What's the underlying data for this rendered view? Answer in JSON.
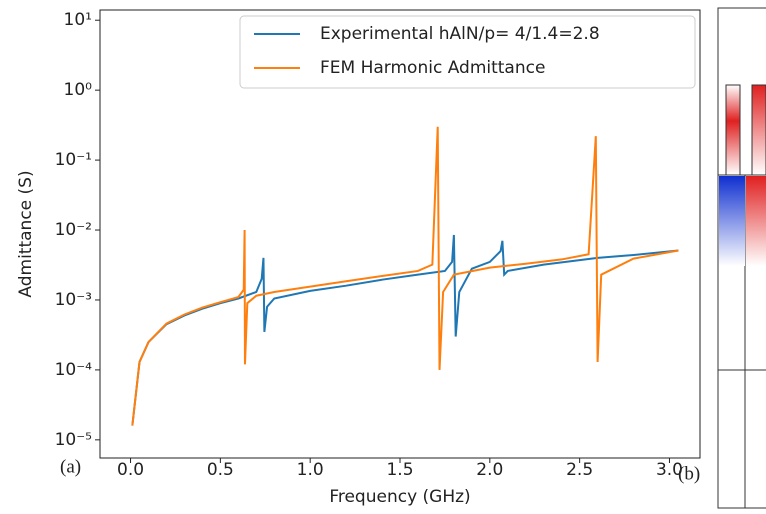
{
  "chart_data": {
    "type": "line",
    "xlabel": "Frequency (GHz)",
    "ylabel": "Admittance (S)",
    "annotations": [
      "(a)",
      "(b)"
    ],
    "yscale": "log",
    "legend": "upper right",
    "xlim": [
      -0.17,
      3.17
    ],
    "ylim": [
      5.5e-06,
      14
    ],
    "xticks": [
      {
        "value": 0,
        "label": "0.0"
      },
      0.5,
      {
        "value": 1,
        "label": "1.0"
      },
      1.5,
      {
        "value": 2,
        "label": "2.0"
      },
      2.5,
      {
        "value": 3,
        "label": "3.0"
      }
    ],
    "yticks": [
      {
        "value": 1e-05,
        "label": "10⁻⁵"
      },
      {
        "value": 0.0001,
        "label": "10⁻⁴"
      },
      {
        "value": 0.001,
        "label": "10⁻³"
      },
      {
        "value": 0.01,
        "label": "10⁻²"
      },
      {
        "value": 0.1,
        "label": "10⁻¹"
      },
      {
        "value": 1,
        "label": "10⁰"
      },
      {
        "value": 10,
        "label": "10¹"
      }
    ],
    "series": [
      {
        "name": "Experimental hAlN/p= 4/1.4=2.8",
        "color": "#1f77b4",
        "x": [
          0.01,
          0.05,
          0.1,
          0.2,
          0.3,
          0.4,
          0.5,
          0.6,
          0.7,
          0.73,
          0.74,
          0.745,
          0.76,
          0.8,
          1.0,
          1.2,
          1.4,
          1.6,
          1.75,
          1.79,
          1.8,
          1.81,
          1.83,
          1.9,
          2.0,
          2.06,
          2.07,
          2.08,
          2.1,
          2.3,
          2.6,
          2.8,
          3.05
        ],
        "values": [
          1.6e-05,
          0.00013,
          0.00025,
          0.00045,
          0.0006,
          0.00075,
          0.0009,
          0.00105,
          0.0013,
          0.002,
          0.004,
          0.00035,
          0.0008,
          0.00105,
          0.00135,
          0.0016,
          0.00195,
          0.0023,
          0.0026,
          0.0035,
          0.0085,
          0.0003,
          0.0013,
          0.0028,
          0.0035,
          0.005,
          0.007,
          0.0023,
          0.0026,
          0.0032,
          0.004,
          0.0044,
          0.0051
        ]
      },
      {
        "name": "FEM Harmonic Admittance",
        "color": "#ff7f0e",
        "x": [
          0.01,
          0.05,
          0.1,
          0.2,
          0.3,
          0.4,
          0.5,
          0.6,
          0.63,
          0.635,
          0.637,
          0.65,
          0.7,
          0.8,
          1.0,
          1.2,
          1.4,
          1.6,
          1.68,
          1.71,
          1.72,
          1.74,
          1.8,
          2.0,
          2.2,
          2.4,
          2.55,
          2.59,
          2.6,
          2.62,
          2.8,
          3.05
        ],
        "values": [
          1.6e-05,
          0.00013,
          0.00025,
          0.00046,
          0.00062,
          0.00078,
          0.00093,
          0.0011,
          0.0014,
          0.01,
          0.00012,
          0.0009,
          0.00115,
          0.0013,
          0.00155,
          0.00185,
          0.0022,
          0.0026,
          0.0032,
          0.3,
          0.0001,
          0.0013,
          0.0023,
          0.0029,
          0.0033,
          0.0038,
          0.0045,
          0.22,
          0.00013,
          0.0023,
          0.0039,
          0.0051
        ]
      }
    ]
  }
}
